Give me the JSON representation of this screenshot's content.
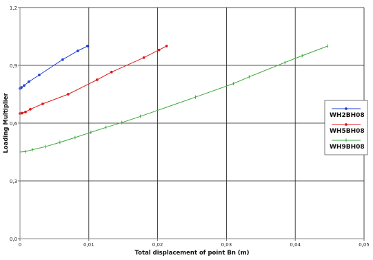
{
  "chart_data": {
    "type": "line",
    "title": "",
    "xlabel": "Total displacement of point Bn (m)",
    "ylabel": "Loading Multiplier",
    "xlim": [
      0,
      0.05
    ],
    "ylim": [
      0,
      1.2
    ],
    "x_ticks": [
      0,
      0.01,
      0.02,
      0.03,
      0.04,
      0.05
    ],
    "x_tick_labels": [
      "0",
      "0,01",
      "0,02",
      "0,03",
      "0,04",
      "0,05"
    ],
    "y_ticks": [
      0,
      0.3,
      0.6,
      0.9,
      1.2
    ],
    "y_tick_labels": [
      "0,0",
      "0,3",
      "0,6",
      "0,9",
      "1,2"
    ],
    "grid": true,
    "legend_position": "right",
    "series": [
      {
        "name": "WH2BH08",
        "color": "#1f3fd8",
        "marker": "dot",
        "x": [
          0,
          0.0002,
          0.0006,
          0.0013,
          0.0028,
          0.0062,
          0.0084,
          0.0098
        ],
        "y": [
          0.78,
          0.785,
          0.795,
          0.815,
          0.85,
          0.93,
          0.975,
          1.0
        ]
      },
      {
        "name": "WH5BH08",
        "color": "#e01818",
        "marker": "dot",
        "x": [
          0,
          0.0003,
          0.0008,
          0.0015,
          0.0033,
          0.007,
          0.0112,
          0.0133,
          0.018,
          0.0202,
          0.0213
        ],
        "y": [
          0.65,
          0.652,
          0.658,
          0.672,
          0.7,
          0.75,
          0.825,
          0.865,
          0.94,
          0.98,
          1.0
        ]
      },
      {
        "name": "WH9BH08",
        "color": "#3aa83a",
        "marker": "tick",
        "x": [
          0,
          0.0008,
          0.0018,
          0.0037,
          0.0058,
          0.008,
          0.0103,
          0.0125,
          0.0148,
          0.0175,
          0.0255,
          0.031,
          0.0333,
          0.0385,
          0.041,
          0.0447
        ],
        "y": [
          0.45,
          0.452,
          0.462,
          0.478,
          0.5,
          0.525,
          0.552,
          0.578,
          0.603,
          0.635,
          0.735,
          0.805,
          0.84,
          0.915,
          0.95,
          1.0
        ]
      }
    ]
  }
}
